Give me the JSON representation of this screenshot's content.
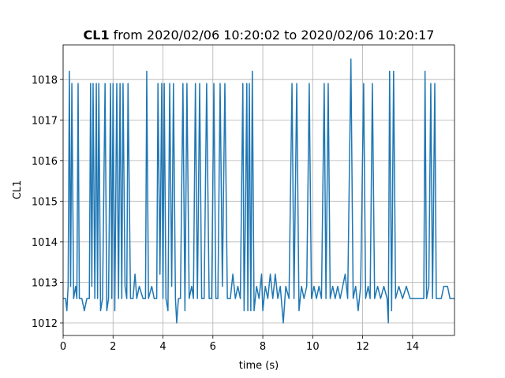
{
  "chart_data": {
    "type": "line",
    "title_bold": "CL1",
    "title": "from 2020/02/06 10:20:02 to 2020/02/06 10:20:17",
    "xlabel": "time (s)",
    "ylabel": "CL1",
    "xlim": [
      0,
      15.68
    ],
    "ylim": [
      1011.69,
      1018.85
    ],
    "xticks": [
      0,
      2,
      4,
      6,
      8,
      10,
      12,
      14
    ],
    "yticks": [
      1012,
      1013,
      1014,
      1015,
      1016,
      1017,
      1018
    ],
    "grid": true,
    "x": [
      0,
      0.1,
      0.15,
      0.2,
      0.25,
      0.3,
      0.35,
      0.42,
      0.5,
      0.55,
      0.6,
      0.65,
      0.75,
      0.85,
      0.95,
      1.05,
      1.1,
      1.15,
      1.2,
      1.27,
      1.33,
      1.38,
      1.43,
      1.5,
      1.58,
      1.68,
      1.75,
      1.82,
      1.9,
      1.95,
      2.0,
      2.07,
      2.15,
      2.22,
      2.28,
      2.35,
      2.4,
      2.48,
      2.55,
      2.6,
      2.7,
      2.8,
      2.88,
      2.95,
      3.05,
      3.2,
      3.3,
      3.35,
      3.42,
      3.55,
      3.65,
      3.75,
      3.8,
      3.88,
      3.95,
      4.0,
      4.05,
      4.12,
      4.2,
      4.27,
      4.35,
      4.42,
      4.5,
      4.55,
      4.62,
      4.7,
      4.8,
      4.88,
      4.96,
      5.05,
      5.15,
      5.22,
      5.3,
      5.38,
      5.47,
      5.55,
      5.65,
      5.75,
      5.85,
      5.95,
      6.04,
      6.12,
      6.2,
      6.29,
      6.38,
      6.48,
      6.58,
      6.7,
      6.8,
      6.9,
      7.0,
      7.1,
      7.2,
      7.25,
      7.3,
      7.36,
      7.4,
      7.46,
      7.52,
      7.58,
      7.65,
      7.75,
      7.85,
      7.95,
      8.0,
      8.1,
      8.2,
      8.3,
      8.4,
      8.5,
      8.6,
      8.7,
      8.82,
      8.92,
      9.05,
      9.17,
      9.25,
      9.36,
      9.45,
      9.55,
      9.65,
      9.76,
      9.86,
      9.95,
      10.05,
      10.15,
      10.25,
      10.35,
      10.46,
      10.53,
      10.62,
      10.7,
      10.8,
      10.9,
      11.0,
      11.1,
      11.2,
      11.3,
      11.4,
      11.53,
      11.62,
      11.72,
      11.82,
      11.92,
      12.04,
      12.12,
      12.22,
      12.3,
      12.39,
      12.48,
      12.6,
      12.72,
      12.85,
      12.98,
      13.03,
      13.08,
      13.16,
      13.24,
      13.32,
      13.45,
      13.6,
      13.75,
      13.9,
      14.1,
      14.3,
      14.45,
      14.5,
      14.56,
      14.65,
      14.73,
      14.8,
      14.89,
      14.95,
      15.05,
      15.15,
      15.25,
      15.4,
      15.5,
      15.68
    ],
    "series": [
      {
        "color": "#1f77b4",
        "values": [
          1012.6,
          1012.6,
          1012.3,
          1012.9,
          1018.2,
          1012.9,
          1017.9,
          1012.6,
          1012.9,
          1012.6,
          1017.9,
          1012.6,
          1012.6,
          1012.3,
          1012.6,
          1012.6,
          1017.9,
          1012.9,
          1017.9,
          1012.6,
          1017.9,
          1012.6,
          1017.9,
          1012.3,
          1012.6,
          1017.9,
          1012.3,
          1012.6,
          1017.9,
          1012.6,
          1017.9,
          1012.3,
          1017.9,
          1012.6,
          1017.9,
          1012.6,
          1017.9,
          1012.9,
          1012.6,
          1017.9,
          1012.6,
          1012.6,
          1013.2,
          1012.6,
          1012.9,
          1012.6,
          1012.6,
          1018.2,
          1012.6,
          1012.9,
          1012.6,
          1012.6,
          1017.9,
          1013.2,
          1017.9,
          1012.6,
          1017.9,
          1012.6,
          1012.3,
          1017.9,
          1012.9,
          1017.9,
          1012.6,
          1012.0,
          1012.6,
          1012.6,
          1017.9,
          1012.3,
          1017.9,
          1012.6,
          1012.9,
          1012.6,
          1017.9,
          1012.6,
          1017.9,
          1012.6,
          1012.6,
          1017.9,
          1012.6,
          1012.6,
          1017.9,
          1012.6,
          1012.6,
          1017.9,
          1012.9,
          1017.9,
          1012.6,
          1012.6,
          1013.2,
          1012.6,
          1012.9,
          1012.6,
          1017.9,
          1012.3,
          1014.5,
          1017.9,
          1012.3,
          1017.9,
          1012.3,
          1018.2,
          1012.3,
          1012.9,
          1012.6,
          1013.2,
          1012.3,
          1012.9,
          1012.6,
          1013.2,
          1012.6,
          1013.2,
          1012.6,
          1012.9,
          1012.0,
          1012.9,
          1012.6,
          1017.9,
          1012.6,
          1017.9,
          1012.3,
          1012.9,
          1012.6,
          1012.9,
          1017.9,
          1012.6,
          1012.9,
          1012.6,
          1012.9,
          1012.6,
          1017.9,
          1012.6,
          1017.9,
          1012.6,
          1012.9,
          1012.6,
          1012.9,
          1012.6,
          1012.9,
          1013.2,
          1012.6,
          1018.5,
          1012.6,
          1012.9,
          1012.3,
          1012.9,
          1017.9,
          1012.6,
          1012.9,
          1012.6,
          1017.9,
          1012.6,
          1012.9,
          1012.6,
          1012.9,
          1012.6,
          1012.0,
          1018.2,
          1012.3,
          1018.2,
          1012.6,
          1012.9,
          1012.6,
          1012.9,
          1012.6,
          1012.6,
          1012.6,
          1012.6,
          1018.2,
          1012.6,
          1012.9,
          1017.9,
          1012.6,
          1017.9,
          1012.6,
          1012.6,
          1012.6,
          1012.9,
          1012.9,
          1012.6,
          1012.6
        ]
      }
    ]
  }
}
